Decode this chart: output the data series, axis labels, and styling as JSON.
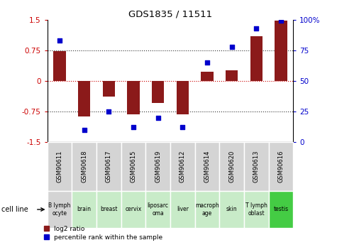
{
  "title": "GDS1835 / 11511",
  "samples": [
    "GSM90611",
    "GSM90618",
    "GSM90617",
    "GSM90615",
    "GSM90619",
    "GSM90612",
    "GSM90614",
    "GSM90620",
    "GSM90613",
    "GSM90616"
  ],
  "cell_lines": [
    "B lymph\nocyte",
    "brain",
    "breast",
    "cervix",
    "liposarc\noma",
    "liver",
    "macroph\nage",
    "skin",
    "T lymph\noblast",
    "testis"
  ],
  "sample_bg": [
    "#d4d4d4",
    "#d4d4d4",
    "#d4d4d4",
    "#d4d4d4",
    "#d4d4d4",
    "#d4d4d4",
    "#d4d4d4",
    "#d4d4d4",
    "#d4d4d4",
    "#d4d4d4"
  ],
  "cell_bg": [
    "#d4d4d4",
    "#c8ebc8",
    "#c8ebc8",
    "#c8ebc8",
    "#c8ebc8",
    "#c8ebc8",
    "#c8ebc8",
    "#c8ebc8",
    "#c8ebc8",
    "#44cc44"
  ],
  "log2_ratio": [
    0.72,
    -0.88,
    -0.38,
    -0.82,
    -0.55,
    -0.82,
    0.22,
    0.25,
    1.1,
    1.47
  ],
  "percentile_rank": [
    83,
    10,
    25,
    12,
    20,
    12,
    65,
    78,
    93,
    99
  ],
  "ylim": [
    -1.5,
    1.5
  ],
  "bar_color": "#8B1A1A",
  "dot_color": "#0000CC",
  "hline0_color": "#cc0000",
  "hline_color": "#333333",
  "legend_red_label": "log2 ratio",
  "legend_blue_label": "percentile rank within the sample",
  "cell_line_label": "cell line",
  "bar_width": 0.5
}
